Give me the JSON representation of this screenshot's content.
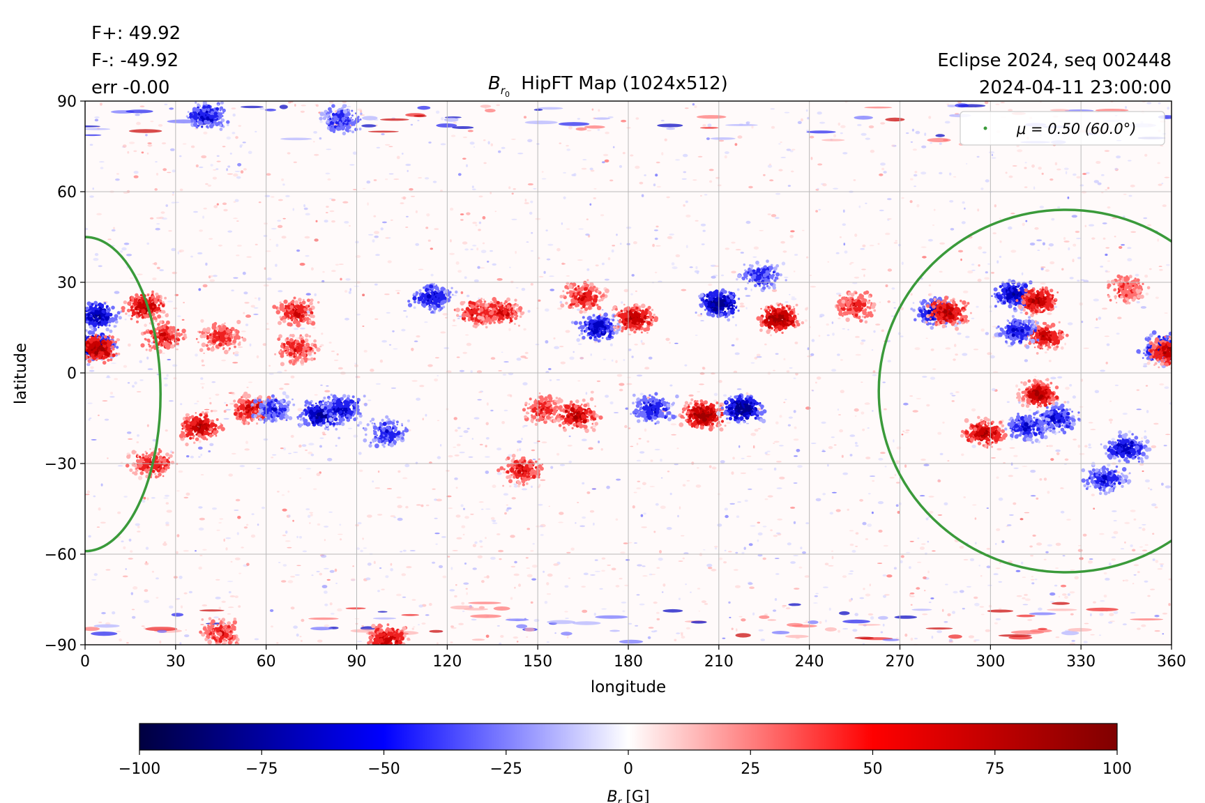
{
  "chart_data": {
    "type": "heatmap",
    "title": "HipFT Map (1024x512)",
    "title_symbol": "B",
    "title_subscript": "r",
    "title_subsubscript": "0",
    "annotations": {
      "flux_pos": "F+: 49.92",
      "flux_neg": "F-: -49.92",
      "error": "err -0.00",
      "event": "Eclipse 2024, seq 002448",
      "datetime": "2024-04-11 23:00:00"
    },
    "xlabel": "longitude",
    "ylabel": "latitude",
    "xlim": [
      0,
      360
    ],
    "ylim": [
      -90,
      90
    ],
    "xticks": [
      0,
      30,
      60,
      90,
      120,
      150,
      180,
      210,
      240,
      270,
      300,
      330,
      360
    ],
    "yticks": [
      -90,
      -60,
      -30,
      0,
      30,
      60,
      90
    ],
    "ytick_labels": [
      "−90",
      "−60",
      "−30",
      "0",
      "30",
      "60",
      "90"
    ],
    "grid": true,
    "legend": {
      "position": "top-right",
      "label": "μ = 0.50 (60.0°)",
      "color": "#3a9a3a"
    },
    "colorbar": {
      "label_symbol": "B",
      "label_sub": "r",
      "label_units": "[G]",
      "min": -100,
      "max": 100,
      "ticks": [
        -100,
        -75,
        -50,
        -25,
        0,
        25,
        50,
        75,
        100
      ],
      "tick_labels": [
        "−100",
        "−75",
        "−50",
        "−25",
        "0",
        "25",
        "50",
        "75",
        "100"
      ],
      "colormap": [
        "#000040",
        "#0000ff",
        "#ffffff",
        "#ff0000",
        "#800000"
      ]
    },
    "contours": [
      {
        "name": "mu-contour-left",
        "center_lon": 0,
        "center_lat": -7,
        "lon_radius": 25,
        "lat_radius": 52
      },
      {
        "name": "mu-contour-right",
        "center_lon": 325,
        "center_lat": -6,
        "lon_radius": 62,
        "lat_radius": 60
      }
    ],
    "active_regions": [
      {
        "lon": 4,
        "lat": 19,
        "sign": -1,
        "strength": 0.8
      },
      {
        "lon": 3,
        "lat": 9,
        "sign": -1,
        "strength": 0.9
      },
      {
        "lon": 4,
        "lat": 8,
        "sign": 1,
        "strength": 0.9
      },
      {
        "lon": 20,
        "lat": 22,
        "sign": 1,
        "strength": 0.8
      },
      {
        "lon": 26,
        "lat": 12,
        "sign": 1,
        "strength": 0.6
      },
      {
        "lon": 45,
        "lat": 12,
        "sign": 1,
        "strength": 0.5
      },
      {
        "lon": 70,
        "lat": 20,
        "sign": 1,
        "strength": 0.6
      },
      {
        "lon": 70,
        "lat": 8,
        "sign": 1,
        "strength": 0.5
      },
      {
        "lon": 38,
        "lat": -18,
        "sign": 1,
        "strength": 0.8
      },
      {
        "lon": 22,
        "lat": -30,
        "sign": 1,
        "strength": 0.6
      },
      {
        "lon": 55,
        "lat": -12,
        "sign": 1,
        "strength": 0.6
      },
      {
        "lon": 62,
        "lat": -12,
        "sign": -1,
        "strength": 0.5
      },
      {
        "lon": 78,
        "lat": -14,
        "sign": -1,
        "strength": 0.9
      },
      {
        "lon": 85,
        "lat": -12,
        "sign": -1,
        "strength": 0.7
      },
      {
        "lon": 100,
        "lat": -20,
        "sign": -1,
        "strength": 0.5
      },
      {
        "lon": 115,
        "lat": 25,
        "sign": -1,
        "strength": 0.6
      },
      {
        "lon": 130,
        "lat": 20,
        "sign": 1,
        "strength": 0.6
      },
      {
        "lon": 138,
        "lat": 20,
        "sign": 1,
        "strength": 0.6
      },
      {
        "lon": 152,
        "lat": -12,
        "sign": 1,
        "strength": 0.5
      },
      {
        "lon": 145,
        "lat": -32,
        "sign": 1,
        "strength": 0.6
      },
      {
        "lon": 163,
        "lat": -14,
        "sign": 1,
        "strength": 0.8
      },
      {
        "lon": 165,
        "lat": 25,
        "sign": 1,
        "strength": 0.6
      },
      {
        "lon": 170,
        "lat": 15,
        "sign": -1,
        "strength": 0.7
      },
      {
        "lon": 182,
        "lat": 18,
        "sign": 1,
        "strength": 0.8
      },
      {
        "lon": 188,
        "lat": -12,
        "sign": -1,
        "strength": 0.6
      },
      {
        "lon": 205,
        "lat": -14,
        "sign": 1,
        "strength": 1.0
      },
      {
        "lon": 210,
        "lat": 23,
        "sign": -1,
        "strength": 1.0
      },
      {
        "lon": 218,
        "lat": -12,
        "sign": -1,
        "strength": 1.0
      },
      {
        "lon": 230,
        "lat": 18,
        "sign": 1,
        "strength": 1.0
      },
      {
        "lon": 224,
        "lat": 32,
        "sign": -1,
        "strength": 0.5
      },
      {
        "lon": 255,
        "lat": 22,
        "sign": 1,
        "strength": 0.5
      },
      {
        "lon": 282,
        "lat": 20,
        "sign": -1,
        "strength": 0.8
      },
      {
        "lon": 286,
        "lat": 20,
        "sign": 1,
        "strength": 0.8
      },
      {
        "lon": 308,
        "lat": 26,
        "sign": -1,
        "strength": 0.8
      },
      {
        "lon": 316,
        "lat": 24,
        "sign": 1,
        "strength": 0.8
      },
      {
        "lon": 318,
        "lat": 12,
        "sign": 1,
        "strength": 0.7
      },
      {
        "lon": 309,
        "lat": 14,
        "sign": -1,
        "strength": 0.6
      },
      {
        "lon": 316,
        "lat": -7,
        "sign": 1,
        "strength": 0.8
      },
      {
        "lon": 322,
        "lat": -15,
        "sign": -1,
        "strength": 0.6
      },
      {
        "lon": 298,
        "lat": -20,
        "sign": 1,
        "strength": 0.8
      },
      {
        "lon": 312,
        "lat": -18,
        "sign": -1,
        "strength": 0.6
      },
      {
        "lon": 345,
        "lat": -25,
        "sign": -1,
        "strength": 0.7
      },
      {
        "lon": 338,
        "lat": -35,
        "sign": -1,
        "strength": 0.6
      },
      {
        "lon": 357,
        "lat": 8,
        "sign": -1,
        "strength": 0.8
      },
      {
        "lon": 359,
        "lat": 7,
        "sign": 1,
        "strength": 0.8
      },
      {
        "lon": 345,
        "lat": 28,
        "sign": 1,
        "strength": 0.4
      },
      {
        "lon": 100,
        "lat": -88,
        "sign": 1,
        "strength": 0.7
      },
      {
        "lon": 45,
        "lat": -86,
        "sign": 1,
        "strength": 0.5
      },
      {
        "lon": 40,
        "lat": 85,
        "sign": -1,
        "strength": 0.6
      },
      {
        "lon": 85,
        "lat": 84,
        "sign": -1,
        "strength": 0.5
      }
    ]
  }
}
